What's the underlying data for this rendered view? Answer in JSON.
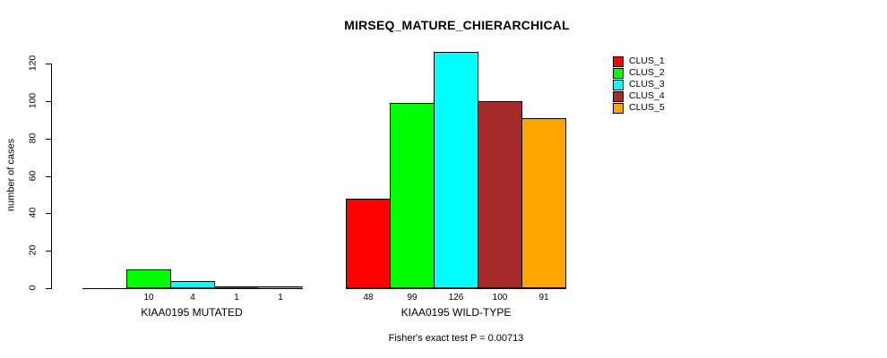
{
  "title": "MIRSEQ_MATURE_CHIERARCHICAL",
  "chart_data": {
    "type": "bar",
    "title": "MIRSEQ_MATURE_CHIERARCHICAL",
    "xlabel": "",
    "ylabel": "number of cases",
    "ylim": [
      0,
      120
    ],
    "yticks": [
      0,
      20,
      40,
      60,
      80,
      100,
      120
    ],
    "grid": false,
    "background_color": "#FFFFFF",
    "categories": [
      "KIAA0195 MUTATED",
      "KIAA0195 WILD-TYPE"
    ],
    "series": [
      {
        "name": "CLUS_1",
        "color": "#FF0000",
        "values": [
          0,
          48
        ]
      },
      {
        "name": "CLUS_2",
        "color": "#00FF00",
        "values": [
          10,
          99
        ]
      },
      {
        "name": "CLUS_3",
        "color": "#00FFFF",
        "values": [
          4,
          126
        ]
      },
      {
        "name": "CLUS_4",
        "color": "#A52A2A",
        "values": [
          1,
          100
        ]
      },
      {
        "name": "CLUS_5",
        "color": "#FFA500",
        "values": [
          1,
          91
        ]
      }
    ],
    "bar_value_labels": [
      [
        "",
        "10",
        "4",
        "1",
        "1"
      ],
      [
        "48",
        "99",
        "126",
        "100",
        "91"
      ]
    ],
    "legend": {
      "position": "top-right",
      "entries": [
        {
          "label": "CLUS_1",
          "color": "#FF0000"
        },
        {
          "label": "CLUS_2",
          "color": "#00FF00"
        },
        {
          "label": "CLUS_3",
          "color": "#00FFFF"
        },
        {
          "label": "CLUS_4",
          "color": "#A52A2A"
        },
        {
          "label": "CLUS_5",
          "color": "#FFA500"
        }
      ]
    },
    "annotation": "Fisher's exact test P = 0.00713"
  }
}
